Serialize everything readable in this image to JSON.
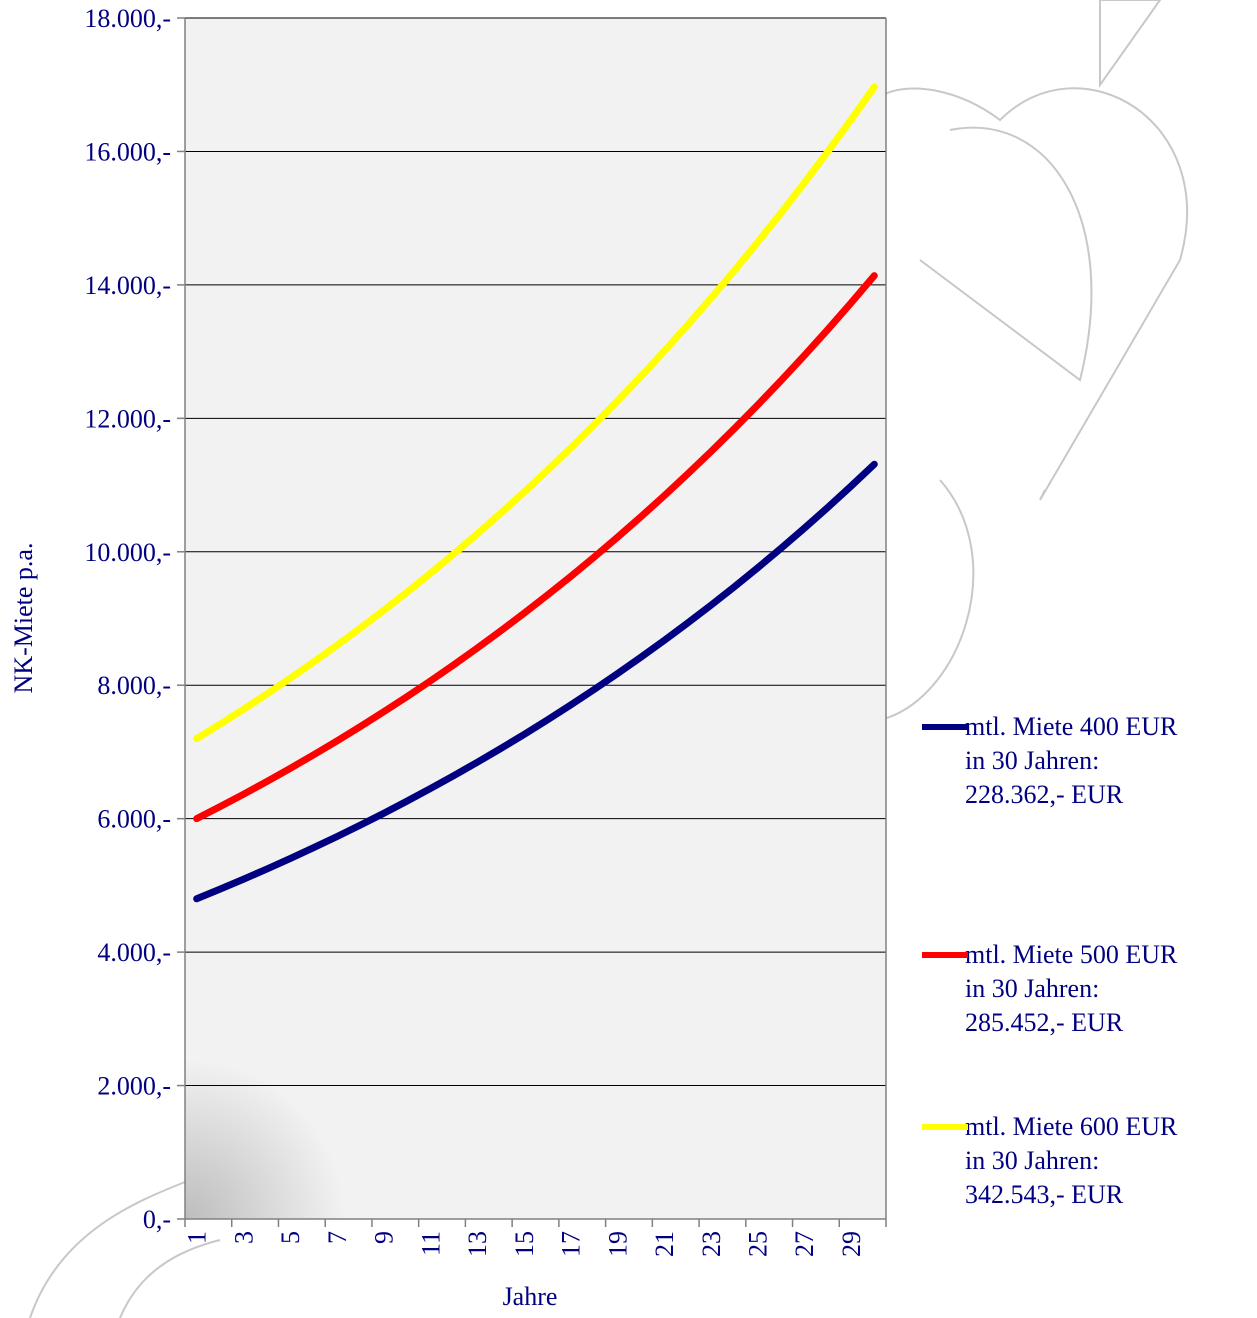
{
  "chart_data": {
    "type": "line",
    "x_label": "Jahre",
    "y_label": "NK-Miete p.a.",
    "categories": [
      1,
      null,
      3,
      null,
      5,
      null,
      7,
      null,
      9,
      null,
      11,
      null,
      13,
      null,
      15,
      null,
      17,
      null,
      19,
      null,
      21,
      null,
      23,
      null,
      25,
      null,
      27,
      null,
      29,
      null
    ],
    "series": [
      {
        "name": "mtl. Miete 400 EUR\nin 30 Jahren:\n228.362,- EUR",
        "color": "#000080",
        "values": [
          4800,
          4944,
          5092,
          5245,
          5402,
          5565,
          5731,
          5903,
          6080,
          6263,
          6451,
          6644,
          6844,
          7049,
          7260,
          7478,
          7703,
          7934,
          8172,
          8417,
          8669,
          8929,
          9197,
          9473,
          9757,
          10050,
          10352,
          10662,
          10982,
          11312
        ]
      },
      {
        "name": "mtl. Miete 500 EUR\nin 30 Jahren:\n285.452,- EUR",
        "color": "#ff0000",
        "values": [
          6000,
          6180,
          6365,
          6556,
          6753,
          6956,
          7164,
          7379,
          7601,
          7829,
          8063,
          8305,
          8555,
          8811,
          9076,
          9348,
          9628,
          9917,
          10215,
          10521,
          10837,
          11162,
          11497,
          11842,
          12197,
          12563,
          12940,
          13328,
          13728,
          14139
        ]
      },
      {
        "name": "mtl. Miete 600 EUR\nin 30 Jahren:\n342.543,- EUR",
        "color": "#ffff00",
        "values": [
          7200,
          7416,
          7638,
          7868,
          8104,
          8347,
          8597,
          8855,
          9121,
          9394,
          9676,
          9966,
          10265,
          10573,
          10891,
          11217,
          11554,
          11901,
          12258,
          12625,
          13004,
          13394,
          13796,
          14210,
          14636,
          15075,
          15527,
          15993,
          16473,
          16967
        ]
      }
    ],
    "ylim": [
      0,
      18000
    ],
    "yticks": [
      {
        "value": 0,
        "label": "0,-"
      },
      {
        "value": 2000,
        "label": "2.000,-"
      },
      {
        "value": 4000,
        "label": "4.000,-"
      },
      {
        "value": 6000,
        "label": "6.000,-"
      },
      {
        "value": 8000,
        "label": "8.000,-"
      },
      {
        "value": 10000,
        "label": "10.000,-"
      },
      {
        "value": 12000,
        "label": "12.000,-"
      },
      {
        "value": 14000,
        "label": "14.000,-"
      },
      {
        "value": 16000,
        "label": "16.000,-"
      },
      {
        "value": 18000,
        "label": "18.000,-"
      }
    ],
    "grid": true
  }
}
